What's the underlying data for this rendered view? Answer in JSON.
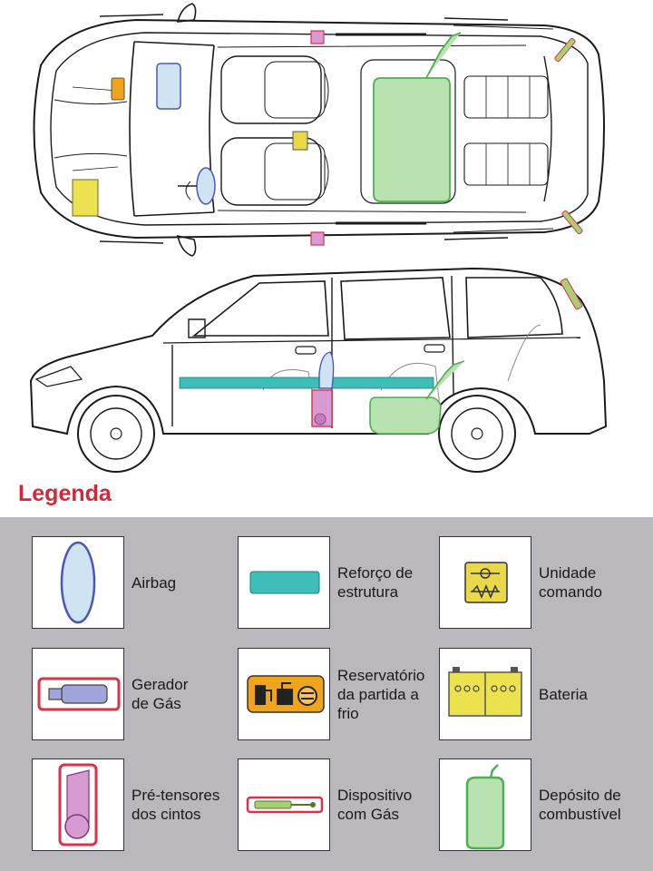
{
  "legend": {
    "title": "Legenda",
    "items": [
      {
        "label": "Airbag",
        "icon": "airbag-icon"
      },
      {
        "label": "Reforço de\nestrutura",
        "icon": "structure-reinforcement-icon"
      },
      {
        "label": "Unidade\ncomando",
        "icon": "control-unit-icon"
      },
      {
        "label": "Gerador\nde Gás",
        "icon": "gas-generator-icon"
      },
      {
        "label": "Reservatório\nda partida a\nfrio",
        "icon": "cold-start-reservoir-icon"
      },
      {
        "label": "Bateria",
        "icon": "battery-icon"
      },
      {
        "label": "Pré-tensores\ndos cintos",
        "icon": "belt-pretensioner-icon"
      },
      {
        "label": "Dispositivo\ncom Gás",
        "icon": "gas-device-icon"
      },
      {
        "label": "Depósito de\ncombustível",
        "icon": "fuel-tank-icon"
      }
    ]
  },
  "colors": {
    "legend_title": "#cc2b3a",
    "panel_background": "#bab8bd",
    "airbag_fill": "#cfe3f2",
    "airbag_stroke": "#4a57b8",
    "structure_fill": "#3fbdb8",
    "control_unit_fill": "#e9d84a",
    "gas_generator_stroke": "#d9324a",
    "cold_start_fill": "#f0a41c",
    "battery_fill": "#ece14e",
    "pretensioner_fill": "#d79ad1",
    "gas_device_fill": "#a9cf73",
    "fuel_tank_fill": "#b8e2b0",
    "fuel_tank_stroke": "#4fae55"
  }
}
